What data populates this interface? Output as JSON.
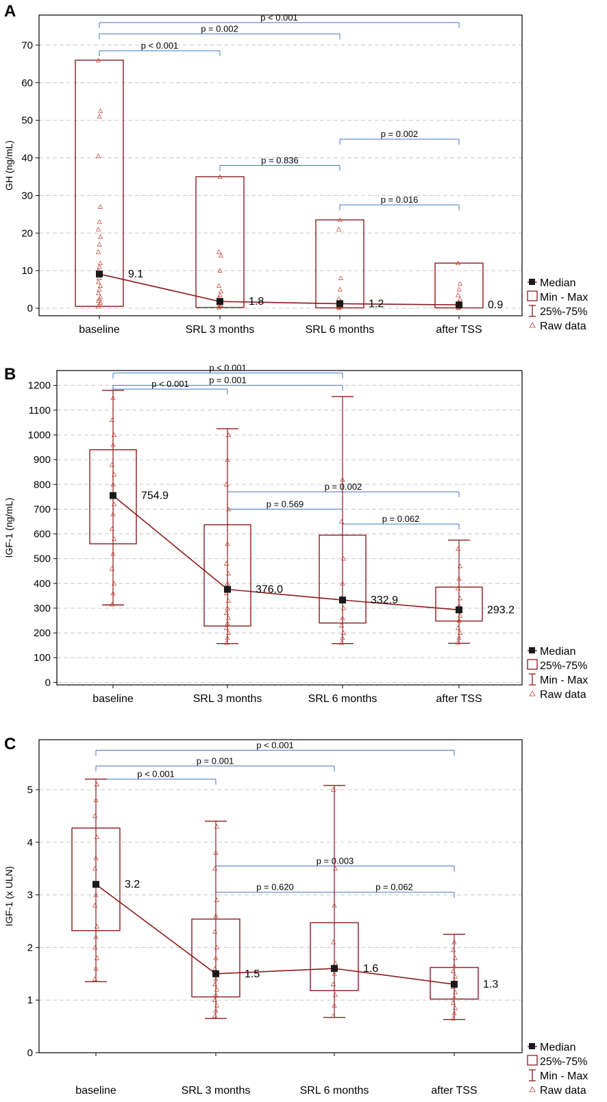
{
  "colors": {
    "series": "#8b1a1a",
    "median_marker": "#1a1a1a",
    "bracket": "#4472c4",
    "grid": "#c8c8c8",
    "raw_marker": "#c0392b"
  },
  "chart_data": [
    {
      "type": "box",
      "panel_label": "A",
      "ylabel": "GH (ng/mL)",
      "ylim": [
        -2,
        78
      ],
      "yticks": [
        0,
        10,
        20,
        30,
        40,
        50,
        60,
        70
      ],
      "grid": true,
      "legend_position": "right",
      "legend": [
        "Median",
        "Min - Max",
        "25%-75%",
        "Raw data"
      ],
      "categories": [
        "baseline",
        "SRL 3 months",
        "SRL 6 months",
        "after TSS"
      ],
      "medians": [
        9.1,
        1.8,
        1.2,
        0.9
      ],
      "median_labels": [
        "9.1",
        "1.8",
        "1.2",
        "0.9"
      ],
      "box_low": [
        0.5,
        0.2,
        0.1,
        0.1
      ],
      "box_high": [
        66,
        35,
        23.5,
        12
      ],
      "whisker_low": [
        null,
        null,
        null,
        null
      ],
      "whisker_high": [
        null,
        null,
        null,
        null
      ],
      "raw": [
        [
          0.5,
          1,
          1.5,
          2,
          2.5,
          3,
          4,
          5,
          6,
          7,
          8,
          9,
          10,
          11,
          12,
          15,
          17,
          19,
          21,
          23,
          27,
          40.5,
          51,
          52.5,
          66
        ],
        [
          0.2,
          0.5,
          0.8,
          1.2,
          1.5,
          2,
          2.8,
          3.5,
          4.5,
          6,
          10,
          14,
          15,
          35
        ],
        [
          0.1,
          0.3,
          0.5,
          0.8,
          1.2,
          1.8,
          2.5,
          5,
          8,
          21,
          23.5
        ],
        [
          0.1,
          0.3,
          0.5,
          1,
          1.5,
          2.5,
          3.5,
          5,
          6.5,
          12
        ]
      ],
      "comparisons": [
        {
          "label": "p < 0.001",
          "from": 0,
          "to": 3,
          "y": 76
        },
        {
          "label": "p = 0.002",
          "from": 0,
          "to": 2,
          "y": 73
        },
        {
          "label": "p < 0.001",
          "from": 0,
          "to": 1,
          "y": 68.5
        },
        {
          "label": "p = 0.002",
          "from": 2,
          "to": 3,
          "y": 45
        },
        {
          "label": "p = 0.836",
          "from": 1,
          "to": 2,
          "y": 38
        },
        {
          "label": "p = 0.016",
          "from": 2,
          "to": 3,
          "y": 27.5
        }
      ]
    },
    {
      "type": "box",
      "panel_label": "B",
      "ylabel": "IGF-1 (ng/mL)",
      "ylim": [
        -10,
        1260
      ],
      "yticks": [
        0,
        100,
        200,
        300,
        400,
        500,
        600,
        700,
        800,
        900,
        1000,
        1100,
        1200
      ],
      "grid": true,
      "legend_position": "right",
      "legend": [
        "Median",
        "25%-75%",
        "Min - Max",
        "Raw data"
      ],
      "categories": [
        "baseline",
        "SRL 3 months",
        "SRL 6 months",
        "after TSS"
      ],
      "medians": [
        754.9,
        376.0,
        332.9,
        293.2
      ],
      "median_labels": [
        "754.9",
        "376.0",
        "332.9",
        "293.2"
      ],
      "box_low": [
        560,
        228,
        240,
        248
      ],
      "box_high": [
        940,
        637,
        595,
        385
      ],
      "whisker_low": [
        313,
        157,
        157,
        158
      ],
      "whisker_high": [
        1180,
        1025,
        1155,
        575
      ],
      "raw": [
        [
          315,
          360,
          400,
          460,
          520,
          580,
          620,
          680,
          720,
          760,
          800,
          840,
          880,
          960,
          1000,
          1060,
          1150
        ],
        [
          160,
          180,
          200,
          220,
          240,
          260,
          280,
          300,
          330,
          360,
          400,
          440,
          480,
          560,
          700,
          800,
          900,
          1000
        ],
        [
          160,
          180,
          200,
          230,
          260,
          300,
          340,
          400,
          500,
          650,
          820
        ],
        [
          160,
          180,
          200,
          220,
          250,
          270,
          290,
          310,
          340,
          380,
          420,
          470,
          540
        ]
      ],
      "comparisons": [
        {
          "label": "p < 0.001",
          "from": 0,
          "to": 2,
          "y": 1250
        },
        {
          "label": "p = 0.001",
          "from": 0,
          "to": 2,
          "y": 1200
        },
        {
          "label": "p < 0.001",
          "from": 0,
          "to": 1,
          "y": 1185
        },
        {
          "label": "p = 0.002",
          "from": 1,
          "to": 3,
          "y": 770
        },
        {
          "label": "p = 0.569",
          "from": 1,
          "to": 2,
          "y": 700
        },
        {
          "label": "p = 0.062",
          "from": 2,
          "to": 3,
          "y": 640
        }
      ]
    },
    {
      "type": "box",
      "panel_label": "C",
      "ylabel": "IGF-1 (x ULN)",
      "ylim": [
        0,
        5.95
      ],
      "yticks": [
        0,
        1,
        2,
        3,
        4,
        5
      ],
      "grid": true,
      "legend_position": "right",
      "legend": [
        "Median",
        "25%-75%",
        "Min - Max",
        "Raw data"
      ],
      "categories": [
        "baseline",
        "SRL 3 months",
        "SRL 6 months",
        "after TSS"
      ],
      "medians": [
        3.2,
        1.5,
        1.6,
        1.3
      ],
      "median_labels": [
        "3.2",
        "1.5",
        "1.6",
        "1.3"
      ],
      "box_low": [
        2.32,
        1.06,
        1.18,
        1.02
      ],
      "box_high": [
        4.27,
        2.54,
        2.47,
        1.62
      ],
      "whisker_low": [
        1.35,
        0.65,
        0.67,
        0.63
      ],
      "whisker_high": [
        5.2,
        4.4,
        5.08,
        2.25
      ],
      "raw": [
        [
          1.4,
          1.6,
          1.8,
          2.0,
          2.2,
          2.4,
          2.8,
          3.0,
          3.2,
          3.5,
          3.7,
          4.1,
          4.5,
          4.8,
          5.1
        ],
        [
          0.7,
          0.8,
          0.9,
          1.0,
          1.1,
          1.2,
          1.3,
          1.4,
          1.5,
          1.6,
          1.8,
          2.0,
          2.3,
          2.6,
          2.9,
          3.5,
          3.8,
          4.3
        ],
        [
          0.7,
          0.9,
          1.1,
          1.3,
          1.5,
          1.7,
          2.1,
          2.8,
          3.5,
          5.0
        ],
        [
          0.65,
          0.75,
          0.85,
          0.95,
          1.05,
          1.15,
          1.25,
          1.35,
          1.45,
          1.55,
          1.65,
          1.8,
          1.95,
          2.1
        ]
      ],
      "comparisons": [
        {
          "label": "p < 0.001",
          "from": 0,
          "to": 3,
          "y": 5.75
        },
        {
          "label": "p = 0.001",
          "from": 0,
          "to": 2,
          "y": 5.45
        },
        {
          "label": "p < 0.001",
          "from": 0,
          "to": 1,
          "y": 5.2
        },
        {
          "label": "p = 0.003",
          "from": 1,
          "to": 3,
          "y": 3.55
        },
        {
          "label": "p = 0.620",
          "from": 1,
          "to": 2,
          "y": 3.05
        },
        {
          "label": "p = 0.062",
          "from": 2,
          "to": 3,
          "y": 3.05
        }
      ]
    }
  ]
}
